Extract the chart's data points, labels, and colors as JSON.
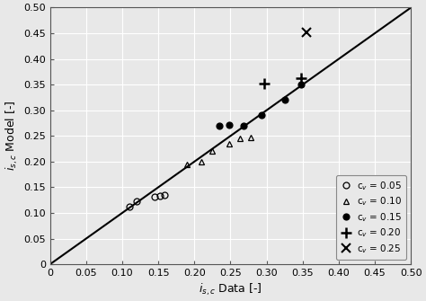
{
  "title": "",
  "xlabel": "i_{s,c} Data [-]",
  "ylabel": "i_{s,c} Model [-]",
  "xlim": [
    0,
    0.5
  ],
  "ylim": [
    0,
    0.5
  ],
  "xticks": [
    0,
    0.05,
    0.1,
    0.15,
    0.2,
    0.25,
    0.3,
    0.35,
    0.4,
    0.45,
    0.5
  ],
  "yticks": [
    0,
    0.05,
    0.1,
    0.15,
    0.2,
    0.25,
    0.3,
    0.35,
    0.4,
    0.45,
    0.5
  ],
  "diagonal_line": [
    [
      0,
      0.5
    ],
    [
      0,
      0.5
    ]
  ],
  "series": [
    {
      "label": "c_v = 0.05",
      "marker": "o",
      "fillstyle": "none",
      "color": "black",
      "x": [
        0.11,
        0.12,
        0.145,
        0.152,
        0.158
      ],
      "y": [
        0.112,
        0.122,
        0.132,
        0.133,
        0.135
      ]
    },
    {
      "label": "c_v = 0.10",
      "marker": "^",
      "fillstyle": "none",
      "color": "black",
      "x": [
        0.19,
        0.21,
        0.225,
        0.248,
        0.263,
        0.278
      ],
      "y": [
        0.195,
        0.2,
        0.22,
        0.235,
        0.245,
        0.247
      ]
    },
    {
      "label": "c_v = 0.15",
      "marker": "o",
      "fillstyle": "full",
      "color": "black",
      "x": [
        0.235,
        0.248,
        0.268,
        0.293,
        0.325,
        0.348
      ],
      "y": [
        0.27,
        0.272,
        0.27,
        0.29,
        0.32,
        0.35
      ]
    },
    {
      "label": "c_v = 0.20",
      "marker": "+",
      "fillstyle": "full",
      "color": "black",
      "x": [
        0.297,
        0.348
      ],
      "y": [
        0.352,
        0.362
      ]
    },
    {
      "label": "c_v = 0.25",
      "marker": "x",
      "fillstyle": "full",
      "color": "black",
      "x": [
        0.355
      ],
      "y": [
        0.452
      ]
    }
  ],
  "legend_labels": [
    "c$_v$ = 0.05",
    "c$_v$ = 0.10",
    "c$_v$ = 0.15",
    "c$_v$ = 0.20",
    "c$_v$ = 0.25"
  ],
  "bg_color": "#e8e8e8",
  "grid_color": "#ffffff",
  "grid_linewidth": 0.8,
  "spine_color": "#555555",
  "tick_fontsize": 8,
  "label_fontsize": 9,
  "marker_sizes": [
    5,
    5,
    5,
    9,
    7
  ],
  "marker_edgewidths": [
    0.9,
    0.9,
    0.9,
    1.8,
    1.5
  ]
}
